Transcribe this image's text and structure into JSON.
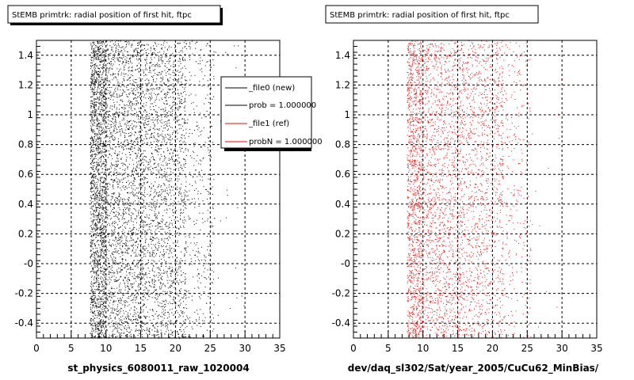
{
  "chart_data": [
    {
      "type": "scatter",
      "title": "StEMB primtrk: radial position of first hit, ftpc",
      "xlabel": "st_physics_6080011_raw_1020004",
      "ylabel": "",
      "xlim": [
        0,
        35
      ],
      "ylim": [
        -0.5,
        1.5
      ],
      "x_ticks": [
        "0",
        "5",
        "10",
        "15",
        "20",
        "25",
        "30",
        "35"
      ],
      "y_ticks": [
        "-0.4",
        "-0.2",
        "-0",
        "0.2",
        "0.4",
        "0.6",
        "0.8",
        "1",
        "1.2",
        "1.4"
      ],
      "grid": true,
      "series": [
        {
          "name": "_file0 (new)",
          "color": "#000000",
          "bands": [
            {
              "x": [
                7.7,
                9.8
              ],
              "count": 1900
            },
            {
              "x": [
                9.8,
                15.5
              ],
              "count": 2200
            },
            {
              "x": [
                15.5,
                21.5
              ],
              "count": 1800
            },
            {
              "x": [
                21.5,
                25.5
              ],
              "count": 350
            },
            {
              "x": [
                25.5,
                30
              ],
              "count": 25
            }
          ]
        }
      ],
      "legend": {
        "placement": "top-right",
        "entries": [
          {
            "label": "_file0 (new)",
            "color": "#000000"
          },
          {
            "label": "prob = 1.000000",
            "color": "#000000"
          },
          {
            "label": "_file1 (ref)",
            "color": "#ff0000"
          },
          {
            "label": "probN = 1.000000",
            "color": "#ff0000"
          }
        ]
      }
    },
    {
      "type": "scatter",
      "title": "StEMB primtrk: radial position of first hit, ftpc",
      "xlabel": "dev/daq_sl302/Sat/year_2005/CuCu62_MinBias/",
      "ylabel": "",
      "xlim": [
        0,
        35
      ],
      "ylim": [
        -0.5,
        1.5
      ],
      "x_ticks": [
        "0",
        "5",
        "10",
        "15",
        "20",
        "25",
        "30",
        "35"
      ],
      "y_ticks": [
        "-0.4",
        "-0.2",
        "-0",
        "0.2",
        "0.4",
        "0.6",
        "0.8",
        "1",
        "1.2",
        "1.4"
      ],
      "grid": true,
      "series": [
        {
          "name": "_file1 (ref)",
          "color": "#ff0000",
          "bands": [
            {
              "x": [
                7.7,
                9.8
              ],
              "count": 1200
            },
            {
              "x": [
                9.8,
                15.5
              ],
              "count": 1500
            },
            {
              "x": [
                15.5,
                21.5
              ],
              "count": 1200
            },
            {
              "x": [
                21.5,
                25.5
              ],
              "count": 250
            },
            {
              "x": [
                25.5,
                30
              ],
              "count": 15
            }
          ]
        }
      ]
    }
  ]
}
